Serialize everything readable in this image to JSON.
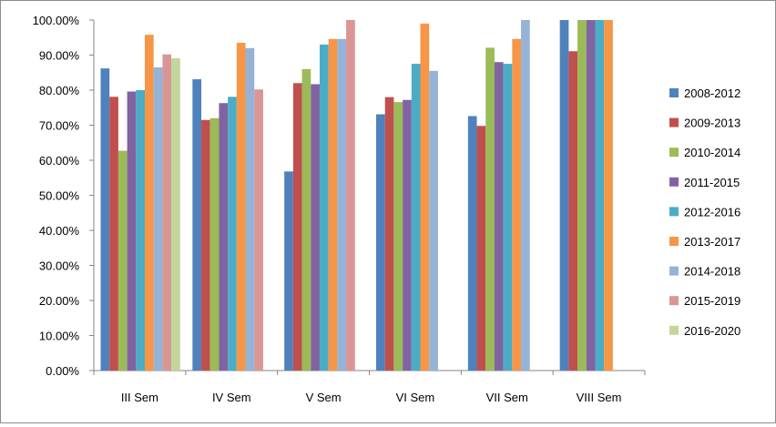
{
  "chart_data": {
    "type": "bar",
    "title": "",
    "xlabel": "",
    "ylabel": "",
    "ylim": [
      0,
      1
    ],
    "yticks": [
      "0.00%",
      "10.00%",
      "20.00%",
      "30.00%",
      "40.00%",
      "50.00%",
      "60.00%",
      "70.00%",
      "80.00%",
      "90.00%",
      "100.00%"
    ],
    "legend_position": "right",
    "grid": false,
    "categories": [
      "III Sem",
      "IV Sem",
      "V Sem",
      "VI Sem",
      "VII Sem",
      "VIII Sem"
    ],
    "series": [
      {
        "name": "2008-2012",
        "color": "#4f81bd",
        "values": [
          0.862,
          0.831,
          0.568,
          0.731,
          0.726,
          1.0
        ]
      },
      {
        "name": "2009-2013",
        "color": "#c0504d",
        "values": [
          0.781,
          0.715,
          0.82,
          0.78,
          0.698,
          0.911
        ]
      },
      {
        "name": "2010-2014",
        "color": "#9bbb59",
        "values": [
          0.627,
          0.72,
          0.86,
          0.766,
          0.921,
          1.0
        ]
      },
      {
        "name": "2011-2015",
        "color": "#8064a2",
        "values": [
          0.796,
          0.763,
          0.817,
          0.772,
          0.88,
          1.0
        ]
      },
      {
        "name": "2012-2016",
        "color": "#4bacc6",
        "values": [
          0.8,
          0.781,
          0.93,
          0.875,
          0.875,
          1.0
        ]
      },
      {
        "name": "2013-2017",
        "color": "#f79646",
        "values": [
          0.958,
          0.935,
          0.946,
          0.99,
          0.946,
          1.0
        ]
      },
      {
        "name": "2014-2018",
        "color": "#95b3d7",
        "values": [
          0.865,
          0.92,
          0.946,
          0.855,
          1.0,
          null
        ]
      },
      {
        "name": "2015-2019",
        "color": "#d99694",
        "values": [
          0.902,
          0.802,
          1.0,
          null,
          null,
          null
        ]
      },
      {
        "name": "2016-2020",
        "color": "#c3d69b",
        "values": [
          0.891,
          null,
          null,
          null,
          null,
          null
        ]
      }
    ]
  }
}
